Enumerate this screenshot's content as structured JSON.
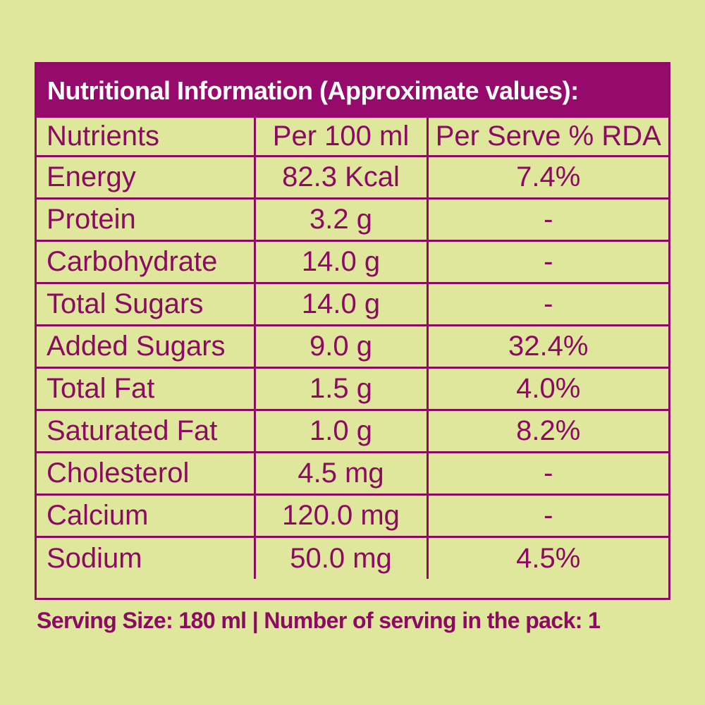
{
  "label": {
    "title": "Nutritional Information (Approximate values):",
    "headers": [
      "Nutrients",
      "Per 100 ml",
      "Per Serve % RDA"
    ],
    "rows": [
      {
        "nutrient": "Energy",
        "per_100ml": "82.3 Kcal",
        "rda": "7.4%"
      },
      {
        "nutrient": "Protein",
        "per_100ml": "3.2 g",
        "rda": "-"
      },
      {
        "nutrient": "Carbohydrate",
        "per_100ml": "14.0 g",
        "rda": "-"
      },
      {
        "nutrient": "Total Sugars",
        "per_100ml": "14.0 g",
        "rda": "-"
      },
      {
        "nutrient": "Added Sugars",
        "per_100ml": "9.0 g",
        "rda": "32.4%"
      },
      {
        "nutrient": "Total Fat",
        "per_100ml": "1.5 g",
        "rda": "4.0%"
      },
      {
        "nutrient": "Saturated Fat",
        "per_100ml": "1.0 g",
        "rda": "8.2%"
      },
      {
        "nutrient": "Cholesterol",
        "per_100ml": "4.5 mg",
        "rda": "-"
      },
      {
        "nutrient": "Calcium",
        "per_100ml": "120.0 mg",
        "rda": "-"
      },
      {
        "nutrient": "Sodium",
        "per_100ml": "50.0 mg",
        "rda": "4.5%"
      }
    ],
    "footer": "Serving Size: 180 ml | Number of serving in the pack: 1"
  },
  "colors": {
    "background": "#dfe79d",
    "accent": "#8d0a63",
    "title_background": "#960a6b",
    "title_text": "#ffffff"
  }
}
